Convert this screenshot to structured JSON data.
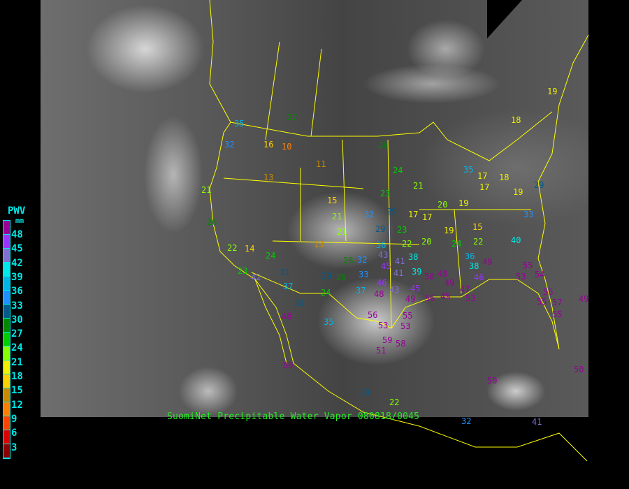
{
  "caption": "SuomiNet Precipitable Water Vapor 080818/0045",
  "legend": {
    "title": "PWV",
    "unit": "mm",
    "ticks": [
      "48",
      "45",
      "42",
      "39",
      "36",
      "33",
      "30",
      "27",
      "24",
      "21",
      "18",
      "15",
      "12",
      "9",
      "6",
      "3"
    ],
    "colors": [
      "#990099",
      "#9933ff",
      "#8070d0",
      "#00e8e8",
      "#00b4e8",
      "#1e90ff",
      "#005a8c",
      "#008800",
      "#00cc00",
      "#88ff00",
      "#f0f000",
      "#ffd000",
      "#c88a00",
      "#ff8000",
      "#ff4400",
      "#dd0000",
      "#8b0000"
    ]
  },
  "map": {
    "border_color": "#ffff00",
    "background": "GOES infrared satellite imagery"
  },
  "stations": [
    27,
    32,
    35,
    16,
    10,
    11,
    13,
    26,
    24,
    21,
    23,
    20,
    19,
    17,
    15,
    21,
    32,
    29,
    17,
    17,
    23,
    29,
    22,
    36,
    20,
    19,
    15,
    13,
    21,
    24,
    22,
    14,
    23,
    42,
    31,
    37,
    31,
    24,
    29,
    26,
    28,
    32,
    33,
    37,
    43,
    45,
    41,
    38,
    39,
    41,
    48,
    46,
    43,
    45,
    49,
    55,
    56,
    53,
    59,
    53,
    58,
    51,
    50,
    48,
    49,
    47,
    53,
    56,
    49,
    35,
    48,
    50,
    29,
    36,
    38,
    46,
    49,
    22,
    24,
    55,
    54,
    53,
    56,
    57,
    55,
    55,
    49,
    40,
    33,
    19,
    19,
    18,
    17,
    18,
    35,
    29,
    21,
    26,
    50,
    50,
    32,
    41,
    22
  ]
}
